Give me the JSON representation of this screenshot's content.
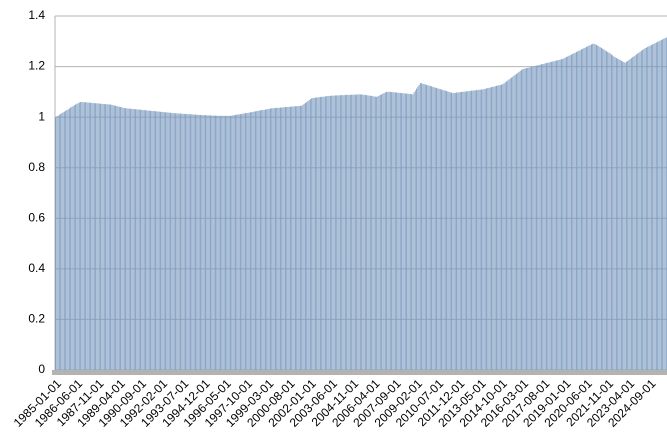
{
  "chart_data": {
    "type": "bar",
    "color": "#7d9cc0",
    "ylim": [
      0,
      1.4
    ],
    "yticks": [
      0,
      0.2,
      0.4,
      0.6,
      0.8,
      1,
      1.2,
      1.4
    ],
    "grid": true,
    "categories": [
      "1985-01-01",
      null,
      null,
      null,
      null,
      null,
      null,
      null,
      null,
      null,
      null,
      null,
      null,
      null,
      null,
      null,
      null,
      "1986-06-01",
      null,
      null,
      null,
      null,
      null,
      null,
      null,
      null,
      null,
      null,
      null,
      null,
      null,
      null,
      null,
      null,
      "1987-11-01",
      null,
      null,
      null,
      null,
      null,
      null,
      null,
      null,
      null,
      null,
      null,
      null,
      null,
      null,
      null,
      null,
      "1989-04-01",
      null,
      null,
      null,
      null,
      null,
      null,
      null,
      null,
      null,
      null,
      null,
      null,
      null,
      null,
      null,
      null,
      "1990-09-01",
      null,
      null,
      null,
      null,
      null,
      null,
      null,
      null,
      null,
      null,
      null,
      null,
      null,
      null,
      null,
      null,
      "1992-02-01",
      null,
      null,
      null,
      null,
      null,
      null,
      null,
      null,
      null,
      null,
      null,
      null,
      null,
      null,
      null,
      null,
      "1993-07-01",
      null,
      null,
      null,
      null,
      null,
      null,
      null,
      null,
      null,
      null,
      null,
      null,
      null,
      null,
      null,
      null,
      "1994-12-01",
      null,
      null,
      null,
      null,
      null,
      null,
      null,
      null,
      null,
      null,
      null,
      null,
      null,
      null,
      null,
      null,
      "1996-05-01",
      null,
      null,
      null,
      null,
      null,
      null,
      null,
      null,
      null,
      null,
      null,
      null,
      null,
      null,
      null,
      null,
      "1997-10-01",
      null,
      null,
      null,
      null,
      null,
      null,
      null,
      null,
      null,
      null,
      null,
      null,
      null,
      null,
      null,
      null,
      "1999-03-01",
      null,
      null,
      null,
      null,
      null,
      null,
      null,
      null,
      null,
      null,
      null,
      null,
      null,
      null,
      null,
      null,
      "2000-08-01",
      null,
      null,
      null,
      null,
      null,
      null,
      null,
      null,
      null,
      null,
      null,
      null,
      null,
      null,
      null,
      null,
      "2002-01-01",
      null,
      null,
      null,
      null,
      null,
      null,
      null,
      null,
      null,
      null,
      null,
      null,
      null,
      null,
      null,
      null,
      "2003-06-01",
      null,
      null,
      null,
      null,
      null,
      null,
      null,
      null,
      null,
      null,
      null,
      null,
      null,
      null,
      null,
      null,
      "2004-11-01",
      null,
      null,
      null,
      null,
      null,
      null,
      null,
      null,
      null,
      null,
      null,
      null,
      null,
      null,
      null,
      null,
      "2006-04-01",
      null,
      null,
      null,
      null,
      null,
      null,
      null,
      null,
      null,
      null,
      null,
      null,
      null,
      null,
      null,
      null,
      "2007-09-01",
      null,
      null,
      null,
      null,
      null,
      null,
      null,
      null,
      null,
      null,
      null,
      null,
      null,
      null,
      null,
      null,
      "2009-02-01",
      null,
      null,
      null,
      null,
      null,
      null,
      null,
      null,
      null,
      null,
      null,
      null,
      null,
      null,
      null,
      null,
      "2010-07-01",
      null,
      null,
      null,
      null,
      null,
      null,
      null,
      null,
      null,
      null,
      null,
      null,
      null,
      null,
      null,
      null,
      "2011-12-01",
      null,
      null,
      null,
      null,
      null,
      null,
      null,
      null,
      null,
      null,
      null,
      null,
      null,
      null,
      null,
      null,
      "2013-05-01",
      null,
      null,
      null,
      null,
      null,
      null,
      null,
      null,
      null,
      null,
      null,
      null,
      null,
      null,
      null,
      null,
      "2014-10-01",
      null,
      null,
      null,
      null,
      null,
      null,
      null,
      null,
      null,
      null,
      null,
      null,
      null,
      null,
      null,
      null,
      "2016-03-01",
      null,
      null,
      null,
      null,
      null,
      null,
      null,
      null,
      null,
      null,
      null,
      null,
      null,
      null,
      null,
      null,
      "2017-08-01",
      null,
      null,
      null,
      null,
      null,
      null,
      null,
      null,
      null,
      null,
      null,
      null,
      null,
      null,
      null,
      null,
      "2019-01-01",
      null,
      null,
      null,
      null,
      null,
      null,
      null,
      null,
      null,
      null,
      null,
      null,
      null,
      null,
      null,
      null,
      "2020-06-01",
      null,
      null,
      null,
      null,
      null,
      null,
      null,
      null,
      null,
      null,
      null,
      null,
      null,
      null,
      null,
      null,
      "2021-11-01",
      null,
      null,
      null,
      null,
      null,
      null,
      null,
      null,
      null,
      null,
      null,
      null,
      null,
      null,
      null,
      null,
      "2023-04-01",
      null,
      null,
      null,
      null,
      null,
      null,
      null,
      null,
      null,
      null,
      null,
      null,
      null,
      null,
      null,
      null,
      "2024-09-01",
      null,
      null,
      null,
      null,
      null,
      null,
      null,
      null,
      null,
      null,
      null,
      null,
      null
    ],
    "values": [
      1.0,
      1.003,
      1.006,
      1.009,
      1.013,
      1.016,
      1.019,
      1.022,
      1.025,
      1.028,
      1.031,
      1.034,
      1.038,
      1.041,
      1.044,
      1.047,
      1.05,
      1.053,
      1.055,
      1.058,
      1.06,
      1.06,
      1.059,
      1.059,
      1.059,
      1.058,
      1.058,
      1.057,
      1.057,
      1.056,
      1.056,
      1.055,
      1.055,
      1.055,
      1.054,
      1.054,
      1.053,
      1.053,
      1.052,
      1.052,
      1.051,
      1.051,
      1.051,
      1.05,
      1.05,
      1.049,
      1.047,
      1.046,
      1.045,
      1.044,
      1.042,
      1.041,
      1.04,
      1.039,
      1.037,
      1.036,
      1.035,
      1.035,
      1.034,
      1.034,
      1.033,
      1.033,
      1.032,
      1.032,
      1.031,
      1.031,
      1.03,
      1.03,
      1.029,
      1.029,
      1.028,
      1.028,
      1.027,
      1.027,
      1.026,
      1.026,
      1.025,
      1.025,
      1.024,
      1.024,
      1.023,
      1.023,
      1.022,
      1.022,
      1.021,
      1.021,
      1.02,
      1.02,
      1.019,
      1.019,
      1.018,
      1.018,
      1.017,
      1.017,
      1.016,
      1.016,
      1.015,
      1.015,
      1.015,
      1.014,
      1.014,
      1.014,
      1.013,
      1.013,
      1.013,
      1.012,
      1.012,
      1.012,
      1.011,
      1.011,
      1.011,
      1.01,
      1.01,
      1.01,
      1.009,
      1.009,
      1.009,
      1.008,
      1.008,
      1.008,
      1.008,
      1.007,
      1.007,
      1.007,
      1.007,
      1.006,
      1.006,
      1.006,
      1.006,
      1.006,
      1.005,
      1.005,
      1.005,
      1.005,
      1.005,
      1.005,
      1.005,
      1.005,
      1.005,
      1.005,
      1.005,
      1.006,
      1.007,
      1.008,
      1.009,
      1.01,
      1.011,
      1.011,
      1.012,
      1.013,
      1.014,
      1.015,
      1.016,
      1.016,
      1.017,
      1.018,
      1.019,
      1.02,
      1.021,
      1.022,
      1.023,
      1.024,
      1.025,
      1.026,
      1.027,
      1.028,
      1.028,
      1.029,
      1.03,
      1.031,
      1.032,
      1.033,
      1.034,
      1.035,
      1.035,
      1.036,
      1.036,
      1.037,
      1.037,
      1.037,
      1.038,
      1.038,
      1.039,
      1.039,
      1.04,
      1.04,
      1.04,
      1.041,
      1.041,
      1.042,
      1.042,
      1.043,
      1.043,
      1.043,
      1.044,
      1.044,
      1.045,
      1.045,
      1.049,
      1.053,
      1.056,
      1.06,
      1.064,
      1.068,
      1.071,
      1.075,
      1.076,
      1.076,
      1.077,
      1.078,
      1.078,
      1.079,
      1.08,
      1.08,
      1.081,
      1.081,
      1.082,
      1.083,
      1.083,
      1.084,
      1.084,
      1.085,
      1.085,
      1.085,
      1.086,
      1.086,
      1.086,
      1.086,
      1.087,
      1.087,
      1.087,
      1.087,
      1.088,
      1.088,
      1.088,
      1.088,
      1.088,
      1.089,
      1.089,
      1.089,
      1.089,
      1.089,
      1.09,
      1.09,
      1.09,
      1.09,
      1.089,
      1.088,
      1.088,
      1.087,
      1.086,
      1.085,
      1.085,
      1.084,
      1.083,
      1.082,
      1.081,
      1.08,
      1.083,
      1.085,
      1.088,
      1.09,
      1.093,
      1.095,
      1.098,
      1.1,
      1.1,
      1.1,
      1.1,
      1.099,
      1.099,
      1.098,
      1.098,
      1.097,
      1.097,
      1.096,
      1.096,
      1.095,
      1.095,
      1.094,
      1.094,
      1.093,
      1.093,
      1.092,
      1.092,
      1.091,
      1.09,
      1.098,
      1.105,
      1.113,
      1.12,
      1.128,
      1.135,
      1.134,
      1.132,
      1.131,
      1.129,
      1.128,
      1.126,
      1.125,
      1.123,
      1.122,
      1.12,
      1.118,
      1.117,
      1.115,
      1.114,
      1.112,
      1.111,
      1.109,
      1.108,
      1.106,
      1.105,
      1.103,
      1.102,
      1.1,
      1.098,
      1.097,
      1.095,
      1.096,
      1.096,
      1.097,
      1.098,
      1.098,
      1.099,
      1.1,
      1.1,
      1.101,
      1.101,
      1.102,
      1.103,
      1.103,
      1.104,
      1.105,
      1.105,
      1.106,
      1.106,
      1.107,
      1.108,
      1.108,
      1.109,
      1.109,
      1.11,
      1.111,
      1.112,
      1.114,
      1.115,
      1.116,
      1.117,
      1.119,
      1.12,
      1.121,
      1.122,
      1.124,
      1.125,
      1.126,
      1.127,
      1.129,
      1.13,
      1.134,
      1.138,
      1.141,
      1.145,
      1.149,
      1.153,
      1.156,
      1.16,
      1.164,
      1.168,
      1.171,
      1.175,
      1.179,
      1.183,
      1.186,
      1.19,
      1.191,
      1.193,
      1.194,
      1.195,
      1.196,
      1.198,
      1.199,
      1.2,
      1.201,
      1.203,
      1.204,
      1.205,
      1.206,
      1.208,
      1.209,
      1.21,
      1.211,
      1.213,
      1.214,
      1.215,
      1.216,
      1.218,
      1.219,
      1.22,
      1.221,
      1.223,
      1.224,
      1.225,
      1.226,
      1.228,
      1.229,
      1.23,
      1.233,
      1.235,
      1.238,
      1.24,
      1.243,
      1.245,
      1.248,
      1.25,
      1.253,
      1.255,
      1.258,
      1.26,
      1.263,
      1.265,
      1.268,
      1.27,
      1.273,
      1.275,
      1.278,
      1.28,
      1.283,
      1.285,
      1.288,
      1.29,
      1.29,
      1.288,
      1.286,
      1.283,
      1.28,
      1.277,
      1.274,
      1.271,
      1.268,
      1.264,
      1.261,
      1.258,
      1.255,
      1.252,
      1.248,
      1.244,
      1.24,
      1.237,
      1.234,
      1.231,
      1.229,
      1.226,
      1.223,
      1.22,
      1.218,
      1.215,
      1.219,
      1.222,
      1.226,
      1.23,
      1.233,
      1.237,
      1.241,
      1.244,
      1.248,
      1.252,
      1.255,
      1.259,
      1.263,
      1.266,
      1.27,
      1.273,
      1.275,
      1.278,
      1.28,
      1.283,
      1.285,
      1.288,
      1.29,
      1.293,
      1.295,
      1.298,
      1.3,
      1.303,
      1.305,
      1.308,
      1.31,
      1.313,
      1.315
    ]
  }
}
